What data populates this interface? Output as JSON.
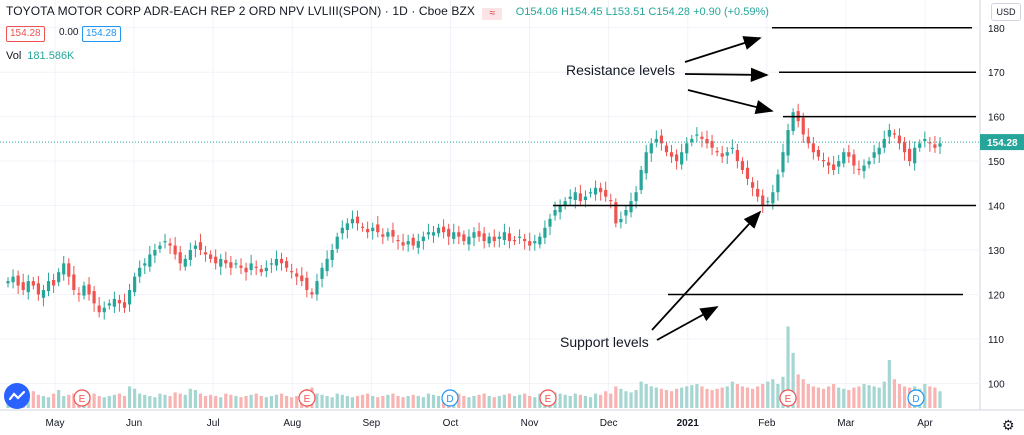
{
  "header": {
    "symbol": "TOYOTA MOTOR CORP ADR-EACH REP 2 ORD NPV LVLIII(SPON) · 1D · Cboe BZX",
    "ohlc": "O154.06  H154.45  L153.51  C154.28  +0.90 (+0.59%)"
  },
  "quote": {
    "bid": "154.28",
    "spread": "0.00",
    "ask": "154.28"
  },
  "volume": {
    "label": "Vol",
    "value": "181.586K"
  },
  "currency": "USD",
  "annotations": {
    "resistance": "Resistance levels",
    "support": "Support levels"
  },
  "icons": {
    "logo": "tradingview-logo-icon",
    "settings": "gear-icon",
    "indicator": "chart-style-icon"
  },
  "colors": {
    "up": "#26a69a",
    "down": "#ef5350",
    "vol_up": "#a5d6d2",
    "vol_down": "#f7b4b2",
    "last": "#26a69a"
  },
  "chart_data": {
    "type": "candlestick",
    "x_labels": [
      "May",
      "Jun",
      "Jul",
      "Aug",
      "Sep",
      "Oct",
      "Nov",
      "Dec",
      "2021",
      "Feb",
      "Mar",
      "Apr"
    ],
    "y_ticks": [
      100,
      110,
      120,
      130,
      140,
      150,
      160,
      170,
      180
    ],
    "ylim": [
      94,
      184
    ],
    "last_price": 154.28,
    "resistance_levels": [
      180,
      170,
      160
    ],
    "support_levels": [
      140,
      120
    ],
    "event_markers": [
      {
        "month": "May",
        "label": "E"
      },
      {
        "month": "Aug",
        "label": "E"
      },
      {
        "month": "Oct",
        "label": "D"
      },
      {
        "month": "Nov",
        "label": "E"
      },
      {
        "month": "Feb",
        "label": "E"
      },
      {
        "month": "Apr",
        "label": "D"
      }
    ],
    "closes": [
      123,
      124,
      122,
      121,
      123,
      122,
      120,
      121,
      123,
      122,
      125,
      127,
      124,
      121,
      120,
      122,
      120,
      118,
      116,
      117,
      118,
      119,
      118,
      117,
      121,
      124,
      126,
      127,
      129,
      130,
      131,
      132,
      131,
      129,
      127,
      128,
      130,
      131,
      130,
      129,
      128,
      127,
      128,
      127,
      126,
      127,
      126,
      125,
      127,
      126,
      125,
      126,
      127,
      128,
      127,
      126,
      125,
      124,
      123,
      121,
      120,
      123,
      126,
      128,
      130,
      133,
      135,
      136,
      137,
      136,
      135,
      134,
      135,
      134,
      133,
      134,
      133,
      132,
      131,
      132,
      131,
      132,
      133,
      134,
      134,
      135,
      134,
      133,
      134,
      133,
      132,
      133,
      134,
      133,
      132,
      133,
      132,
      133,
      134,
      132,
      132,
      133,
      132,
      131,
      132,
      133,
      135,
      137,
      139,
      140,
      141,
      142,
      143,
      141,
      142,
      143,
      144,
      143,
      142,
      141,
      136,
      137,
      139,
      141,
      143,
      148,
      152,
      154,
      155,
      154,
      152,
      151,
      150,
      152,
      154,
      155,
      156,
      155,
      154,
      153,
      152,
      151,
      152,
      153,
      150,
      148,
      146,
      144,
      142,
      140,
      141,
      143,
      147,
      152,
      157,
      161,
      159,
      156,
      154,
      152,
      151,
      150,
      149,
      148,
      150,
      152,
      151,
      149,
      148,
      149,
      150,
      152,
      153,
      155,
      157,
      156,
      154,
      152,
      150,
      153,
      154,
      155,
      154,
      153,
      154
    ],
    "volumes": [
      0.55,
      0.5,
      0.6,
      0.45,
      0.5,
      0.7,
      0.55,
      0.5,
      0.45,
      0.6,
      0.75,
      0.5,
      0.55,
      0.6,
      0.5,
      0.45,
      0.55,
      0.6,
      0.5,
      0.45,
      0.5,
      0.55,
      0.6,
      0.5,
      0.9,
      0.8,
      0.6,
      0.55,
      0.5,
      0.45,
      0.6,
      0.55,
      0.5,
      0.65,
      0.6,
      0.55,
      0.8,
      0.75,
      0.6,
      0.5,
      0.55,
      0.5,
      0.45,
      0.6,
      0.55,
      0.5,
      0.45,
      0.5,
      0.55,
      0.6,
      0.5,
      0.45,
      0.5,
      0.55,
      0.6,
      0.5,
      0.45,
      0.5,
      0.55,
      0.8,
      0.85,
      0.6,
      0.55,
      0.5,
      0.45,
      0.6,
      0.55,
      0.5,
      0.45,
      0.5,
      0.55,
      0.6,
      0.5,
      0.45,
      0.5,
      0.55,
      0.6,
      0.5,
      0.45,
      0.5,
      0.55,
      0.5,
      0.45,
      0.6,
      0.55,
      0.5,
      0.45,
      0.5,
      0.55,
      0.6,
      0.5,
      0.45,
      0.5,
      0.55,
      0.6,
      0.5,
      0.45,
      0.5,
      0.55,
      0.6,
      0.5,
      0.55,
      0.6,
      0.5,
      0.45,
      0.6,
      0.55,
      0.7,
      0.65,
      0.6,
      0.55,
      0.5,
      0.6,
      0.55,
      0.5,
      0.45,
      0.6,
      0.55,
      0.7,
      0.6,
      0.9,
      0.8,
      0.7,
      0.65,
      0.75,
      1.1,
      1.0,
      0.9,
      0.85,
      0.8,
      0.75,
      0.7,
      0.8,
      0.85,
      0.9,
      0.95,
      1.0,
      0.9,
      0.8,
      0.75,
      0.8,
      0.85,
      0.9,
      1.1,
      1.0,
      0.9,
      0.85,
      0.8,
      0.9,
      1.0,
      1.1,
      1.2,
      1.0,
      1.3,
      3.4,
      2.3,
      1.4,
      1.2,
      1.0,
      0.9,
      0.85,
      0.8,
      0.9,
      1.0,
      0.85,
      0.8,
      0.75,
      0.85,
      0.9,
      1.0,
      0.95,
      0.9,
      0.85,
      1.1,
      2.0,
      1.2,
      1.0,
      0.9,
      0.85,
      0.9,
      0.8,
      1.0,
      0.9,
      0.85,
      0.7
    ]
  }
}
